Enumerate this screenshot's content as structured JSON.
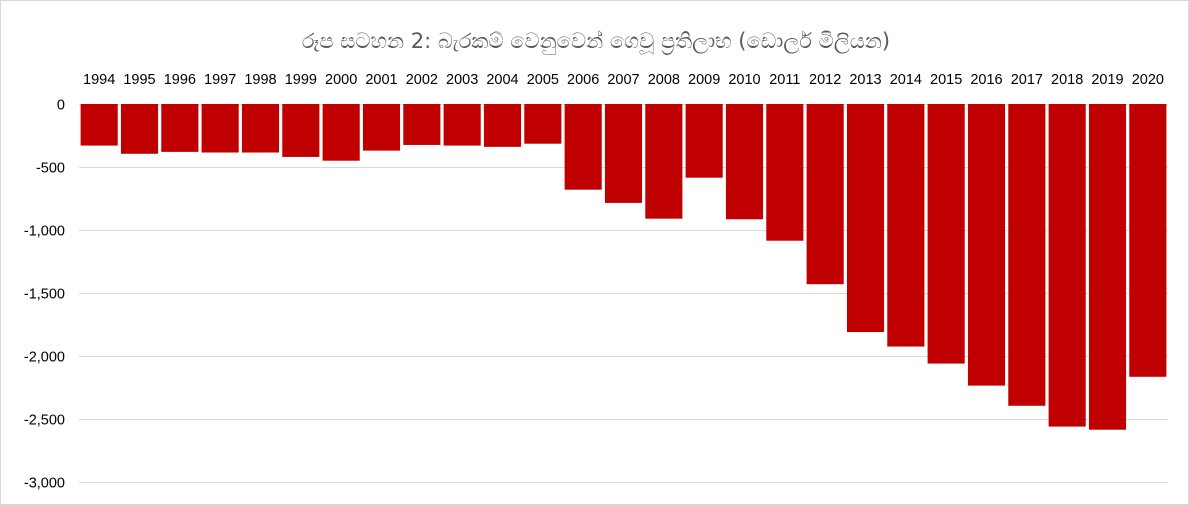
{
  "chart_data": {
    "type": "bar",
    "title": "රූප සටහන 2: බැරකම් වෙනුවෙන් ගෙවූ ප්‍රතිලාභ (ඩොලර් මිලියන)",
    "xlabel": "",
    "ylabel": "",
    "categories": [
      "1994",
      "1995",
      "1996",
      "1997",
      "1998",
      "1999",
      "2000",
      "2001",
      "2002",
      "2003",
      "2004",
      "2005",
      "2006",
      "2007",
      "2008",
      "2009",
      "2010",
      "2011",
      "2012",
      "2013",
      "2014",
      "2015",
      "2016",
      "2017",
      "2018",
      "2019",
      "2020"
    ],
    "values": [
      -330,
      -395,
      -380,
      -385,
      -385,
      -420,
      -450,
      -370,
      -325,
      -330,
      -340,
      -315,
      -680,
      -785,
      -910,
      -585,
      -915,
      -1085,
      -1430,
      -1810,
      -1925,
      -2060,
      -2235,
      -2395,
      -2560,
      -2585,
      -2165
    ],
    "ylim": [
      -3000,
      0
    ],
    "yticks": [
      0,
      -500,
      -1000,
      -1500,
      -2000,
      -2500,
      -3000
    ],
    "ytick_labels": [
      "0",
      "-500",
      "-1,000",
      "-1,500",
      "-2,000",
      "-2,500",
      "-3,000"
    ],
    "category_axis_position": "top",
    "grid": true,
    "legend": "none",
    "bar_color": "#C00000",
    "grid_color": "#D9D9D9"
  }
}
